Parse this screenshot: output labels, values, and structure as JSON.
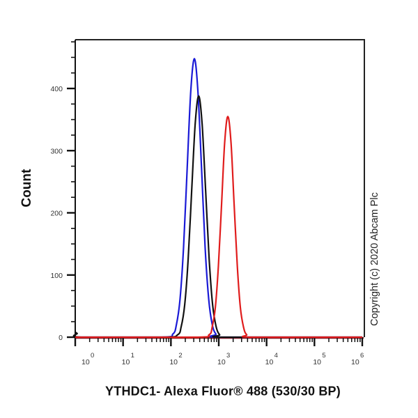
{
  "chart_data": {
    "type": "line",
    "subtype": "flow-cytometry-histogram",
    "title": "",
    "xlabel": "YTHDC1- Alexa Fluor® 488 (530/30 BP)",
    "ylabel": "Count",
    "annotation": "Copyright (c) 2020 Abcam Plc",
    "x_scale": "log",
    "xlim_log10": [
      0,
      6
    ],
    "ylim": [
      0,
      478
    ],
    "x_ticks": [
      {
        "log": 0,
        "base": "10",
        "exp": "0"
      },
      {
        "log": 1,
        "base": "10",
        "exp": "1"
      },
      {
        "log": 2,
        "base": "10",
        "exp": "2"
      },
      {
        "log": 3,
        "base": "10",
        "exp": "3"
      },
      {
        "log": 4,
        "base": "10",
        "exp": "4"
      },
      {
        "log": 5,
        "base": "10",
        "exp": "5"
      },
      {
        "log": 6,
        "base": "10",
        "exp": "6"
      }
    ],
    "y_ticks": [
      0,
      100,
      200,
      300,
      400
    ],
    "y_minor_step": 25,
    "grid": false,
    "legend": null,
    "series": [
      {
        "name": "blue-histogram",
        "color": "#1a1ad6",
        "peak_x": 310,
        "peak_count": 448,
        "points_log10x": [
          0,
          1.8,
          2.04,
          2.115,
          2.19,
          2.265,
          2.34,
          2.415,
          2.49,
          2.565,
          2.64,
          2.715,
          2.79,
          2.865,
          2.94,
          3.05,
          6
        ],
        "counts": [
          0,
          0,
          5,
          20,
          61,
          145,
          272,
          395,
          448,
          395,
          272,
          145,
          61,
          20,
          5,
          0,
          0
        ]
      },
      {
        "name": "black-histogram",
        "color": "#111111",
        "peak_x": 380,
        "peak_count": 388,
        "points_log10x": [
          0,
          0.04,
          0.12,
          1.85,
          2.142,
          2.215,
          2.288,
          2.361,
          2.434,
          2.507,
          2.58,
          2.653,
          2.726,
          2.799,
          2.872,
          2.945,
          3.018,
          3.12,
          6
        ],
        "counts": [
          8,
          6,
          0,
          0,
          4,
          17,
          52,
          126,
          235,
          342,
          388,
          342,
          235,
          126,
          52,
          17,
          4,
          0,
          0
        ]
      },
      {
        "name": "red-histogram",
        "color": "#e01c1c",
        "peak_x": 1550,
        "peak_count": 355,
        "points_log10x": [
          0,
          2.5,
          2.797,
          2.862,
          2.928,
          2.993,
          3.059,
          3.124,
          3.19,
          3.256,
          3.321,
          3.387,
          3.452,
          3.518,
          3.583,
          3.7,
          6
        ],
        "counts": [
          0,
          0,
          4,
          16,
          48,
          115,
          215,
          313,
          355,
          313,
          215,
          115,
          48,
          16,
          4,
          0,
          0
        ]
      }
    ]
  },
  "labels": {
    "y_axis_title": "Count",
    "x_axis_title": "YTHDC1- Alexa Fluor® 488 (530/30 BP)",
    "copyright": "Copyright (c) 2020 Abcam Plc"
  },
  "colors": {
    "axis": "#111111",
    "tick_label": "#333333",
    "baseline": "#8b1a1a"
  }
}
